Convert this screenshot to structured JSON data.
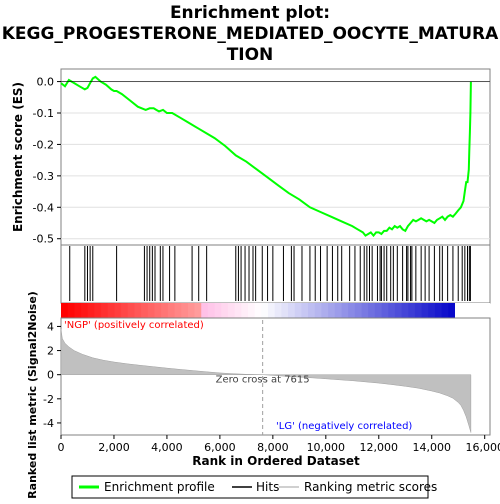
{
  "chart_data": {
    "type": "line",
    "title_lines": [
      "Enrichment plot:",
      "KEGG_PROGESTERONE_MEDIATED_OOCYTE_MATURA",
      "TION"
    ],
    "top_panel": {
      "ylabel": "Enrichment score (ES)",
      "ylim": [
        -0.52,
        0.04
      ],
      "yticks": [
        0.0,
        -0.1,
        -0.2,
        -0.3,
        -0.4,
        -0.5
      ],
      "ytick_labels": [
        "0.0",
        "-0.1",
        "-0.2",
        "-0.3",
        "-0.4",
        "-0.5"
      ],
      "series": [
        {
          "name": "Enrichment profile",
          "color": "#00ff00",
          "x": [
            0,
            150,
            300,
            500,
            700,
            900,
            1000,
            1100,
            1200,
            1300,
            1500,
            1700,
            1900,
            2000,
            2100,
            2300,
            2600,
            2900,
            3200,
            3350,
            3500,
            3600,
            3700,
            3850,
            4000,
            4200,
            4500,
            4800,
            5200,
            5500,
            5800,
            6200,
            6600,
            7000,
            7400,
            7800,
            8200,
            8600,
            9000,
            9400,
            9800,
            10200,
            10600,
            11000,
            11200,
            11400,
            11500,
            11600,
            11700,
            11800,
            11900,
            12000,
            12100,
            12200,
            12300,
            12400,
            12500,
            12600,
            12700,
            12800,
            12900,
            13000,
            13100,
            13200,
            13300,
            13400,
            13500,
            13600,
            13700,
            13800,
            13900,
            14000,
            14100,
            14200,
            14300,
            14400,
            14500,
            14600,
            14700,
            14800,
            14900,
            15000,
            15100,
            15200,
            15250,
            15300,
            15350,
            15400,
            15420,
            15440,
            15460,
            15480
          ],
          "y": [
            -0.005,
            -0.015,
            0.005,
            -0.005,
            -0.015,
            -0.025,
            -0.02,
            -0.005,
            0.01,
            0.015,
            0.0,
            -0.01,
            -0.025,
            -0.03,
            -0.03,
            -0.04,
            -0.06,
            -0.08,
            -0.09,
            -0.085,
            -0.085,
            -0.09,
            -0.095,
            -0.09,
            -0.1,
            -0.1,
            -0.115,
            -0.13,
            -0.15,
            -0.165,
            -0.18,
            -0.205,
            -0.235,
            -0.255,
            -0.28,
            -0.305,
            -0.33,
            -0.355,
            -0.375,
            -0.4,
            -0.415,
            -0.43,
            -0.445,
            -0.46,
            -0.47,
            -0.48,
            -0.49,
            -0.485,
            -0.48,
            -0.49,
            -0.48,
            -0.48,
            -0.485,
            -0.475,
            -0.475,
            -0.465,
            -0.47,
            -0.46,
            -0.465,
            -0.46,
            -0.47,
            -0.475,
            -0.46,
            -0.45,
            -0.44,
            -0.445,
            -0.44,
            -0.435,
            -0.44,
            -0.445,
            -0.44,
            -0.445,
            -0.45,
            -0.44,
            -0.435,
            -0.43,
            -0.44,
            -0.43,
            -0.425,
            -0.43,
            -0.42,
            -0.41,
            -0.4,
            -0.38,
            -0.35,
            -0.32,
            -0.32,
            -0.28,
            -0.22,
            -0.16,
            -0.1,
            0.0
          ]
        }
      ]
    },
    "hits": {
      "name": "Hits",
      "color": "#000000",
      "positions": [
        330,
        900,
        1000,
        1100,
        1200,
        2100,
        3150,
        3250,
        3350,
        3450,
        3550,
        3750,
        3850,
        4100,
        4300,
        4950,
        5200,
        5500,
        6600,
        6700,
        6800,
        6950,
        7100,
        7250,
        7350,
        7600,
        7800,
        8000,
        8400,
        8700,
        8800,
        9100,
        9400,
        9600,
        9800,
        10050,
        10250,
        10450,
        10600,
        10900,
        11100,
        11300,
        11450,
        11550,
        11650,
        11750,
        11950,
        12050,
        12100,
        12200,
        12300,
        12450,
        12550,
        12700,
        12900,
        13050,
        13100,
        13200,
        13250,
        13400,
        13600,
        13750,
        13900,
        14100,
        14300,
        14400,
        14600,
        14800,
        15000,
        15150,
        15250,
        15350,
        15420,
        15460
      ]
    },
    "color_bar": {
      "label_left": "'NGP' (positively correlated)",
      "label_right": "'LG' (negatively correlated)",
      "left_label_color": "#ff0000",
      "right_label_color": "#0000ff"
    },
    "bottom_panel": {
      "name": "Ranking metric scores",
      "ylabel": "Ranked list metric (Signal2Noise)",
      "ylim": [
        -5.0,
        4.7
      ],
      "yticks": [
        4,
        2,
        0,
        -2,
        -4
      ],
      "ytick_labels": [
        "4",
        "2",
        "0",
        "-2",
        "-4"
      ],
      "fill_color": "#c0c0c0",
      "x": [
        0,
        50,
        150,
        300,
        500,
        800,
        1200,
        1600,
        2000,
        2500,
        3000,
        3500,
        4000,
        4500,
        5000,
        5500,
        6000,
        6500,
        7000,
        7615,
        8000,
        8500,
        9000,
        9500,
        10000,
        10500,
        11000,
        11500,
        12000,
        12500,
        13000,
        13500,
        14000,
        14300,
        14600,
        14800,
        15000,
        15100,
        15200,
        15300,
        15400,
        15480
      ],
      "y": [
        3.8,
        3.0,
        2.6,
        2.3,
        2.0,
        1.7,
        1.4,
        1.2,
        1.05,
        0.9,
        0.78,
        0.66,
        0.55,
        0.44,
        0.34,
        0.24,
        0.15,
        0.08,
        0.03,
        0.0,
        -0.06,
        -0.13,
        -0.2,
        -0.27,
        -0.34,
        -0.42,
        -0.5,
        -0.6,
        -0.7,
        -0.82,
        -0.96,
        -1.12,
        -1.35,
        -1.52,
        -1.75,
        -1.95,
        -2.3,
        -2.55,
        -2.95,
        -3.5,
        -4.2,
        -4.8
      ],
      "zero_cross_label": "Zero cross at 7615",
      "zero_cross_x": 7615
    },
    "xaxis": {
      "label": "Rank in Ordered Dataset",
      "xlim": [
        0,
        16200
      ],
      "xticks": [
        0,
        2000,
        4000,
        6000,
        8000,
        10000,
        12000,
        14000,
        16000
      ],
      "xtick_labels": [
        "0",
        "2,000",
        "4,000",
        "6,000",
        "8,000",
        "10,000",
        "12,000",
        "14,000",
        "16,000"
      ]
    },
    "legend": {
      "placement": "bottom",
      "items": [
        {
          "label": "Enrichment profile",
          "color": "#00ff00"
        },
        {
          "label": "Hits",
          "color": "#000000"
        },
        {
          "label": "Ranking metric scores",
          "color": "#c0c0c0"
        }
      ]
    }
  }
}
